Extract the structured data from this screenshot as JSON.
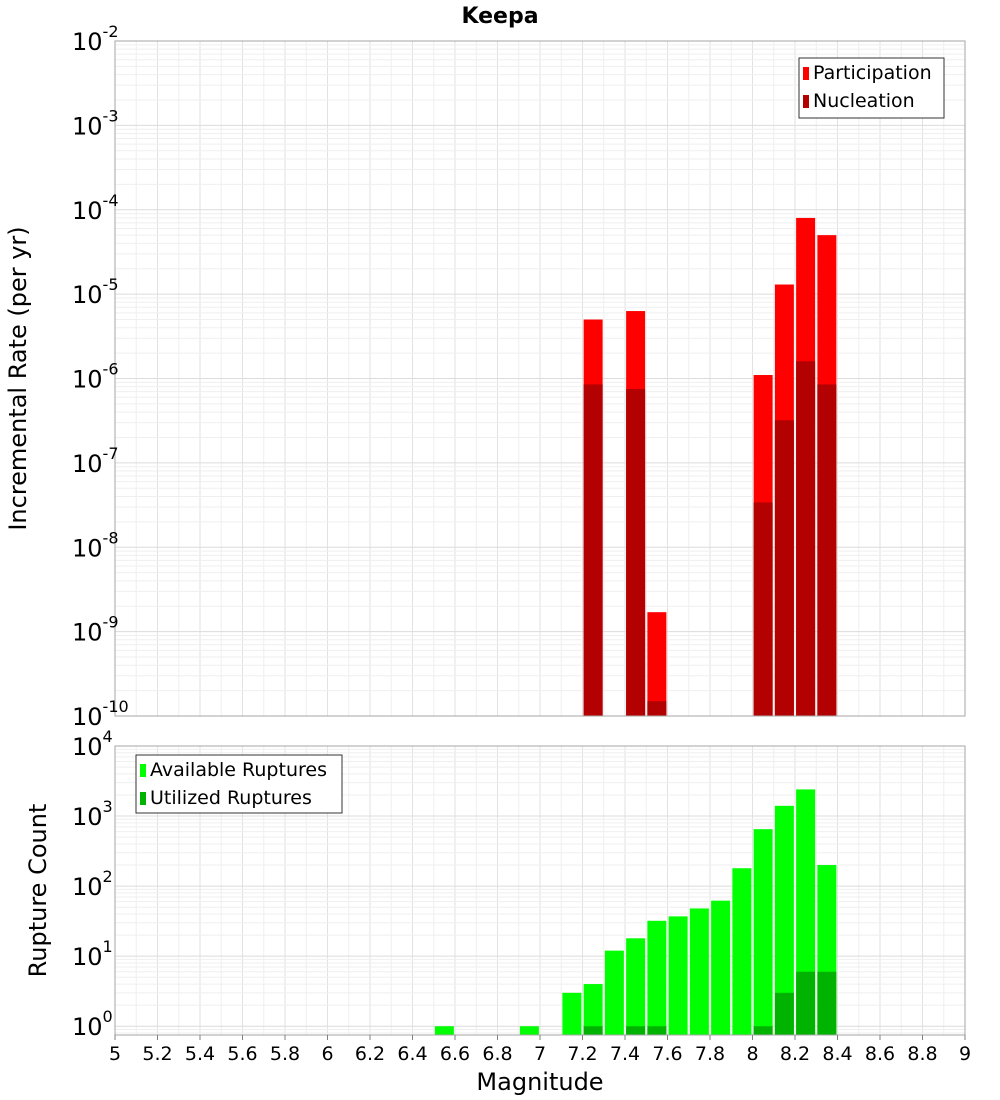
{
  "chart_data": [
    {
      "type": "bar",
      "title": "Keepa",
      "xlabel": "",
      "ylabel": "Incremental Rate (per yr)",
      "yscale": "log",
      "ylim": [
        1e-10,
        0.01
      ],
      "xlim": [
        5,
        9
      ],
      "y_ticks": [
        {
          "base": "10",
          "exp": "-2"
        },
        {
          "base": "10",
          "exp": "-3"
        },
        {
          "base": "10",
          "exp": "-4"
        },
        {
          "base": "10",
          "exp": "-5"
        },
        {
          "base": "10",
          "exp": "-6"
        },
        {
          "base": "10",
          "exp": "-7"
        },
        {
          "base": "10",
          "exp": "-8"
        },
        {
          "base": "10",
          "exp": "-9"
        },
        {
          "base": "10",
          "exp": "-10"
        }
      ],
      "legend_position": "top-right",
      "series": [
        {
          "name": "Participation",
          "color": "#ff0000",
          "points": [
            {
              "x": 7.25,
              "y": 5e-06
            },
            {
              "x": 7.45,
              "y": 6.3e-06
            },
            {
              "x": 7.55,
              "y": 1.7e-09
            },
            {
              "x": 8.05,
              "y": 1.1e-06
            },
            {
              "x": 8.15,
              "y": 1.3e-05
            },
            {
              "x": 8.25,
              "y": 8e-05
            },
            {
              "x": 8.35,
              "y": 5e-05
            }
          ]
        },
        {
          "name": "Nucleation",
          "color": "#b30000",
          "points": [
            {
              "x": 7.25,
              "y": 8.5e-07
            },
            {
              "x": 7.45,
              "y": 7.5e-07
            },
            {
              "x": 7.55,
              "y": 1.5e-10
            },
            {
              "x": 8.05,
              "y": 3.4e-08
            },
            {
              "x": 8.15,
              "y": 3.2e-07
            },
            {
              "x": 8.25,
              "y": 1.6e-06
            },
            {
              "x": 8.35,
              "y": 8.5e-07
            }
          ]
        }
      ]
    },
    {
      "type": "bar",
      "xlabel": "Magnitude",
      "ylabel": "Rupture Count",
      "yscale": "log",
      "ylim": [
        0.75,
        10000
      ],
      "xlim": [
        5,
        9
      ],
      "x_ticks": [
        "5",
        "5.2",
        "5.4",
        "5.6",
        "5.8",
        "6",
        "6.2",
        "6.4",
        "6.6",
        "6.8",
        "7",
        "7.2",
        "7.4",
        "7.6",
        "7.8",
        "8",
        "8.2",
        "8.4",
        "8.6",
        "8.8",
        "9"
      ],
      "y_ticks": [
        {
          "base": "10",
          "exp": "4"
        },
        {
          "base": "10",
          "exp": "3"
        },
        {
          "base": "10",
          "exp": "2"
        },
        {
          "base": "10",
          "exp": "1"
        },
        {
          "base": "10",
          "exp": "0"
        }
      ],
      "legend_position": "top-left",
      "series": [
        {
          "name": "Available Ruptures",
          "color": "#00ff00",
          "points": [
            {
              "x": 6.55,
              "y": 1
            },
            {
              "x": 6.95,
              "y": 1
            },
            {
              "x": 7.15,
              "y": 3
            },
            {
              "x": 7.25,
              "y": 4
            },
            {
              "x": 7.35,
              "y": 12
            },
            {
              "x": 7.45,
              "y": 18
            },
            {
              "x": 7.55,
              "y": 32
            },
            {
              "x": 7.65,
              "y": 37
            },
            {
              "x": 7.75,
              "y": 48
            },
            {
              "x": 7.85,
              "y": 62
            },
            {
              "x": 7.95,
              "y": 180
            },
            {
              "x": 8.05,
              "y": 650
            },
            {
              "x": 8.15,
              "y": 1400
            },
            {
              "x": 8.25,
              "y": 2400
            },
            {
              "x": 8.35,
              "y": 200
            }
          ]
        },
        {
          "name": "Utilized Ruptures",
          "color": "#00b300",
          "points": [
            {
              "x": 7.25,
              "y": 1
            },
            {
              "x": 7.45,
              "y": 1
            },
            {
              "x": 7.55,
              "y": 1
            },
            {
              "x": 8.05,
              "y": 1
            },
            {
              "x": 8.15,
              "y": 3
            },
            {
              "x": 8.25,
              "y": 6
            },
            {
              "x": 8.35,
              "y": 6
            }
          ]
        }
      ]
    }
  ]
}
